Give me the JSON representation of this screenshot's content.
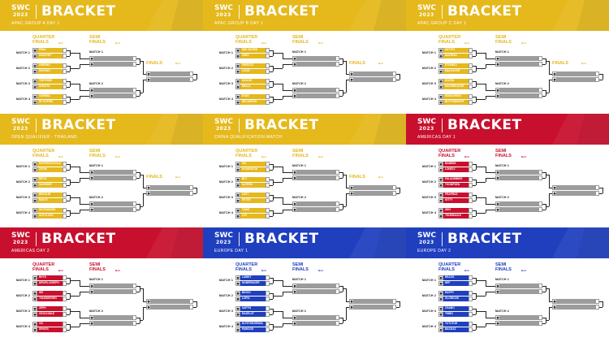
{
  "colors": {
    "yellow": "#e5b81c",
    "red": "#c8102e",
    "blue": "#1f3fbf",
    "grey_slot": "#9c9c9c"
  },
  "logo": {
    "line1": "SWC",
    "line2": "2023"
  },
  "labels": {
    "quarter": "QUARTER",
    "finals": "FINALS",
    "semi": "SEMI",
    "final_label": "FINALS",
    "bo": "Bo3",
    "match1": "MATCH 1",
    "match2": "MATCH 2",
    "match3": "MATCH 3",
    "match4": "MATCH 4"
  },
  "panels": [
    {
      "title": "BRACKET",
      "subtitle": "APAC GROUP A DAY 1",
      "color": "yellow",
      "show_final": true,
      "players": [
        "PINKI",
        "HANCHET",
        "ONEEHO",
        "SUKHAN",
        "THEYRIDE",
        "GHOSTE",
        "YOENNA",
        "DF SOPHIE"
      ]
    },
    {
      "title": "BRACKET",
      "subtitle": "APAC GROUP B DAY 1",
      "color": "yellow",
      "show_final": true,
      "players": [
        "MIN CHURIN",
        "OBEY",
        "FREEZZZ",
        "LUCID",
        "HAN-SE",
        "REALZ",
        "EYAN",
        "HECARRON"
      ]
    },
    {
      "title": "BRACKET",
      "subtitle": "APAC GROUP C DAY 1",
      "color": "yellow",
      "show_final": true,
      "players": [
        "HATTEZ",
        "INAHRAN",
        "STORMCI",
        "MALEANOR",
        "KOZEN",
        "MOORHEADGE",
        "KINGCHRON",
        "BUTTONWHITE"
      ]
    },
    {
      "title": "BRACKET",
      "subtitle": "OPEN QUALIFIER - THAILAND",
      "color": "yellow",
      "show_final": true,
      "players": [
        "PAPERCHOCOLA",
        "ZOOM",
        "BEIYA",
        "SUDEWRY",
        "REKCLIN",
        "NAVLE",
        "SKYRANGER",
        "OUTCLASS"
      ]
    },
    {
      "title": "BRACKET",
      "subtitle": "CHINA QUALIFICATION MATCH",
      "color": "yellow",
      "show_final": true,
      "players": [
        "FAI",
        "HUAWUDON",
        "BLY",
        "KATERS",
        "LEXT",
        "PETER",
        "TAIKE",
        "LIYI"
      ]
    },
    {
      "title": "BRACKET",
      "subtitle": "AMERICAS DAY 1",
      "color": "red",
      "show_final": false,
      "players": [
        "BABEEN",
        "LONELY",
        "PALADINBIKE",
        "THOMPSEN",
        "PRAPRAS",
        "GITTY",
        "SEIV",
        "TRUEMAULE"
      ]
    },
    {
      "title": "BRACKET",
      "subtitle": "AMERICAS DAY 2",
      "color": "red",
      "show_final": false,
      "players": [
        "RHYS",
        "DRIVELJOSEPH",
        "SEI",
        "THUNDERHEV",
        "ZEPH",
        "CROCODILE",
        "VIC",
        "SPIKES"
      ]
    },
    {
      "title": "BRACKET",
      "subtitle": "EUROPE DAY 1",
      "color": "blue",
      "show_final": false,
      "players": [
        "LAWKY",
        "NOBERNICER",
        "BIGOO",
        "LUPIA",
        "SAPYN",
        "RAZELUT",
        "ELFSTHEGENSA",
        "PAWOOD"
      ]
    },
    {
      "title": "BRACKET",
      "subtitle": "EUROPE DAY 2",
      "color": "blue",
      "show_final": false,
      "players": [
        "REACH",
        "NEF",
        "RAPPY",
        "GLORIOUS",
        "OSABO",
        "THIBO",
        "TUTUTUH",
        "BACKAZ"
      ]
    }
  ]
}
